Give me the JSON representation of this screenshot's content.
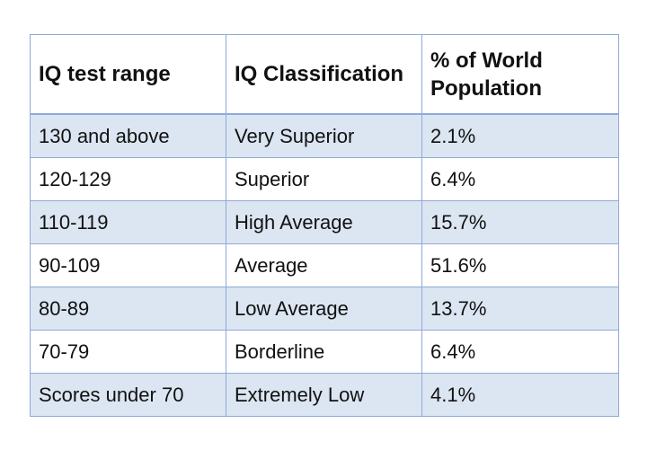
{
  "table": {
    "header": [
      "IQ test range",
      "IQ Classification",
      "% of World Population"
    ],
    "rows": [
      [
        "130 and above",
        "Very Superior",
        "2.1%"
      ],
      [
        "120-129",
        "Superior",
        "6.4%"
      ],
      [
        "110-119",
        "High Average",
        "15.7%"
      ],
      [
        "90-109",
        "Average",
        "51.6%"
      ],
      [
        "80-89",
        "Low Average",
        "13.7%"
      ],
      [
        "70-79",
        "Borderline",
        "6.4%"
      ],
      [
        "Scores under 70",
        "Extremely Low",
        "4.1%"
      ]
    ]
  }
}
